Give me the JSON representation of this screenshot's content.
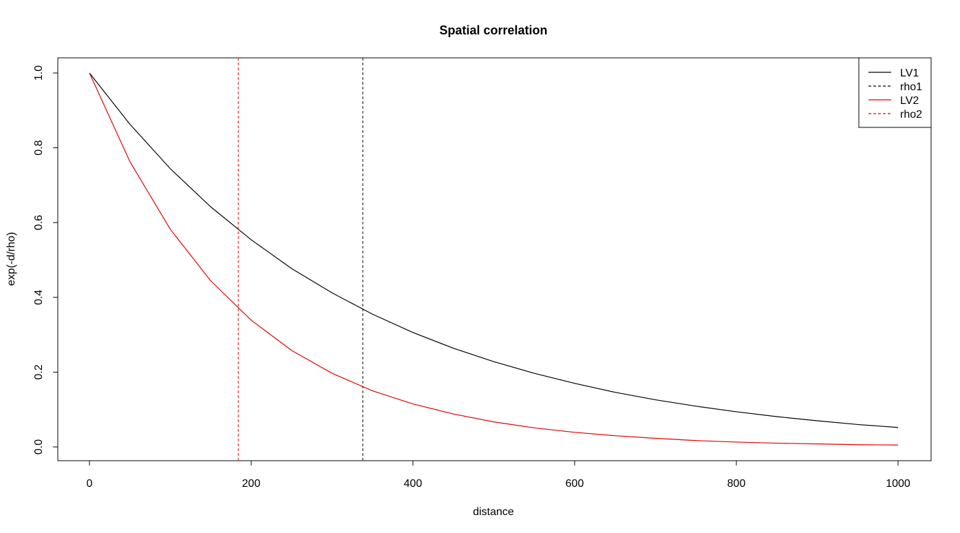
{
  "chart_data": {
    "type": "line",
    "title": "Spatial correlation",
    "xlabel": "distance",
    "ylabel": "exp(-d/rho)",
    "xlim": [
      0,
      1000
    ],
    "ylim": [
      0,
      1
    ],
    "xticks": [
      0,
      200,
      400,
      600,
      800,
      1000
    ],
    "yticks": [
      0.0,
      0.2,
      0.4,
      0.6,
      0.8,
      1.0
    ],
    "xtick_labels": [
      "0",
      "200",
      "400",
      "600",
      "800",
      "1000"
    ],
    "ytick_labels": [
      "0.0",
      "0.2",
      "0.4",
      "0.6",
      "0.8",
      "1.0"
    ],
    "grid": false,
    "legend_position": "top-right",
    "series": [
      {
        "name": "LV1",
        "color": "#000000",
        "line_style": "solid",
        "x": [
          0,
          50,
          100,
          150,
          200,
          250,
          300,
          350,
          400,
          450,
          500,
          550,
          600,
          650,
          700,
          750,
          800,
          850,
          900,
          950,
          1000
        ],
        "y": [
          1.0,
          0.863,
          0.744,
          0.642,
          0.554,
          0.477,
          0.412,
          0.355,
          0.306,
          0.264,
          0.228,
          0.197,
          0.17,
          0.146,
          0.126,
          0.109,
          0.094,
          0.081,
          0.07,
          0.06,
          0.052
        ]
      },
      {
        "name": "rho1",
        "color": "#000000",
        "line_style": "dashed",
        "vline_x": 338
      },
      {
        "name": "LV2",
        "color": "#e00000",
        "line_style": "solid",
        "x": [
          0,
          50,
          100,
          150,
          200,
          250,
          300,
          350,
          400,
          450,
          500,
          550,
          600,
          650,
          700,
          750,
          800,
          850,
          900,
          950,
          1000
        ],
        "y": [
          1.0,
          0.763,
          0.582,
          0.444,
          0.339,
          0.258,
          0.197,
          0.15,
          0.115,
          0.088,
          0.067,
          0.051,
          0.039,
          0.03,
          0.023,
          0.017,
          0.013,
          0.01,
          0.008,
          0.006,
          0.005
        ]
      },
      {
        "name": "rho2",
        "color": "#e00000",
        "line_style": "dashed",
        "vline_x": 184
      }
    ]
  }
}
